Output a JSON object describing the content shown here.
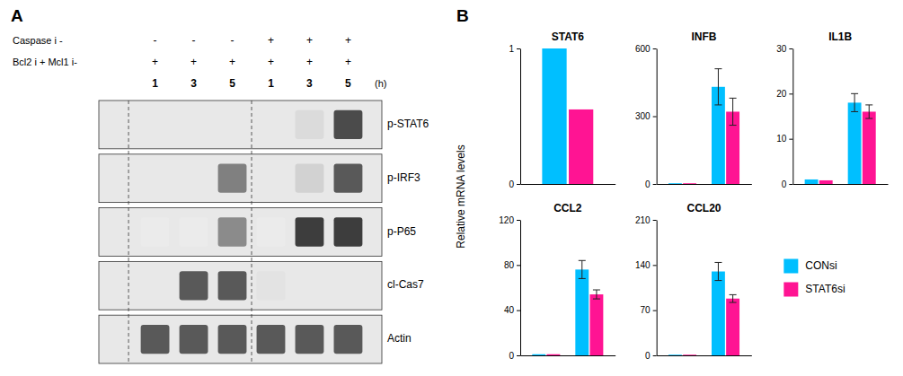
{
  "chart_data": [
    {
      "type": "heatmap",
      "annotations": [
        "A"
      ],
      "header_labels": [
        "Caspase i -",
        "Bcl2 i + Mcl1 i-",
        "(h)"
      ],
      "column_labels": [
        [
          "-",
          "-",
          "-",
          "+",
          "+",
          "+"
        ],
        [
          "+",
          "+",
          "+",
          "+",
          "+",
          "+"
        ],
        [
          "1",
          "3",
          "5",
          "1",
          "3",
          "5"
        ]
      ],
      "categories": [
        "p-STAT6",
        "p-IRF3",
        "p-P65",
        "cl-Cas7",
        "Actin"
      ],
      "cells": [
        [
          null,
          null,
          null,
          null,
          0.25,
          0.85
        ],
        [
          null,
          null,
          0.65,
          null,
          0.3,
          0.8
        ],
        [
          0.15,
          0.15,
          0.6,
          0.15,
          0.9,
          0.9
        ],
        [
          null,
          0.8,
          0.8,
          0.2,
          null,
          null
        ],
        [
          0.8,
          0.8,
          0.8,
          0.8,
          0.8,
          0.8
        ]
      ]
    },
    {
      "type": "bar",
      "title": "STAT6",
      "annotations": [
        "B"
      ],
      "ylabel": "Relative mRNA levels",
      "legend": "right",
      "categories": [
        null
      ],
      "series": [
        {
          "name": "CONsi",
          "color": "#00BFFF",
          "values": [
            1.0
          ]
        },
        {
          "name": "STAT6si",
          "color": "#FF1493",
          "values": [
            0.55
          ]
        }
      ],
      "ylim": [
        0,
        1
      ],
      "yticks": [
        0,
        1
      ]
    },
    {
      "type": "bar",
      "title": "INFB",
      "categories": [
        null,
        null
      ],
      "series": [
        {
          "color": "#00BFFF",
          "values": [
            3,
            430
          ],
          "errors": [
            null,
            80
          ]
        },
        {
          "color": "#FF1493",
          "values": [
            3,
            320
          ],
          "errors": [
            null,
            60
          ]
        }
      ],
      "ylim": [
        0,
        600
      ],
      "yticks": [
        0,
        300,
        600
      ]
    },
    {
      "type": "bar",
      "title": "IL1B",
      "categories": [
        null,
        null
      ],
      "series": [
        {
          "color": "#00BFFF",
          "values": [
            1.0,
            18
          ],
          "errors": [
            null,
            2
          ]
        },
        {
          "color": "#FF1493",
          "values": [
            0.8,
            16
          ],
          "errors": [
            null,
            1.5
          ]
        }
      ],
      "ylim": [
        0,
        30
      ],
      "yticks": [
        0,
        10,
        20,
        30
      ]
    },
    {
      "type": "bar",
      "title": "CCL2",
      "categories": [
        null,
        null
      ],
      "series": [
        {
          "color": "#00BFFF",
          "values": [
            1,
            76
          ],
          "errors": [
            null,
            8
          ]
        },
        {
          "color": "#FF1493",
          "values": [
            1,
            54
          ],
          "errors": [
            null,
            4
          ]
        }
      ],
      "ylim": [
        0,
        120
      ],
      "yticks": [
        0,
        40,
        80,
        120
      ]
    },
    {
      "type": "bar",
      "title": "CCL20",
      "categories": [
        null,
        null
      ],
      "series": [
        {
          "color": "#00BFFF",
          "values": [
            1,
            130
          ],
          "errors": [
            null,
            14
          ]
        },
        {
          "color": "#FF1493",
          "values": [
            1,
            88
          ],
          "errors": [
            null,
            6
          ]
        }
      ],
      "ylim": [
        0,
        210
      ],
      "yticks": [
        0,
        70,
        140,
        210
      ]
    }
  ]
}
